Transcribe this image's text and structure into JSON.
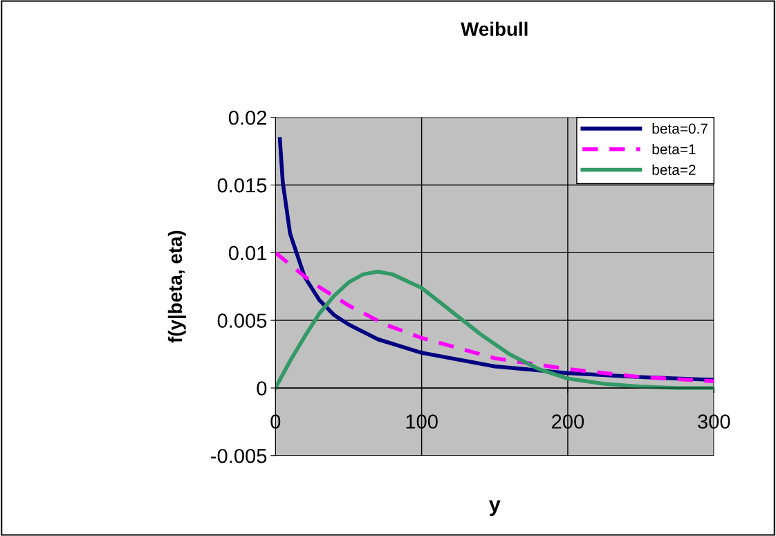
{
  "chart_data": {
    "type": "line",
    "title": "Weibull",
    "xlabel": "y",
    "ylabel": "f(y|beta, eta)",
    "xlim": [
      0,
      300
    ],
    "xticks": [
      0,
      100,
      200,
      300
    ],
    "ylim": [
      -0.005,
      0.02
    ],
    "yticks": [
      -0.005,
      0,
      0.005,
      0.01,
      0.015,
      0.02
    ],
    "grid": true,
    "legend": "top right",
    "marker": "none",
    "series": [
      {
        "name": "beta=0.7",
        "color": "#000080",
        "line_style": "solid",
        "x": [
          3,
          5,
          10,
          20,
          30,
          40,
          50,
          70,
          100,
          150,
          200,
          250,
          300
        ],
        "values": [
          0.0184,
          0.0152,
          0.0114,
          0.0082,
          0.0065,
          0.0054,
          0.0047,
          0.0036,
          0.0026,
          0.0016,
          0.0011,
          0.0008,
          0.0006
        ]
      },
      {
        "name": "beta=1",
        "color": "#ff00ff",
        "line_style": "dashed",
        "x": [
          0,
          25,
          50,
          75,
          100,
          150,
          200,
          250,
          300
        ],
        "values": [
          0.01,
          0.0078,
          0.0061,
          0.0047,
          0.0037,
          0.0022,
          0.0014,
          0.0008,
          0.0005
        ]
      },
      {
        "name": "beta=2",
        "color": "#339966",
        "line_style": "solid",
        "x": [
          0,
          10,
          20,
          30,
          40,
          50,
          60,
          70,
          80,
          100,
          120,
          140,
          160,
          180,
          200,
          225,
          250,
          275,
          300
        ],
        "values": [
          0,
          0.002,
          0.0038,
          0.0055,
          0.0068,
          0.0078,
          0.0084,
          0.0086,
          0.0084,
          0.0074,
          0.0057,
          0.004,
          0.0025,
          0.0014,
          0.0007,
          0.0003,
          0.0001,
          0,
          0
        ]
      }
    ]
  }
}
